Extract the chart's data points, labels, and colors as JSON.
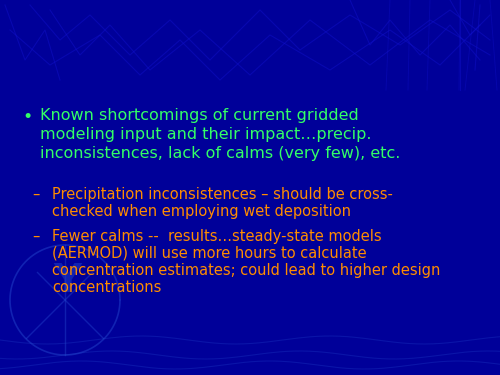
{
  "background_color": "#000099",
  "bullet_text_color": "#33ff66",
  "sub_bullet_color": "#ff8c00",
  "bullet_text_line1": "Known shortcomings of current gridded",
  "bullet_text_line2": "modeling input and their impact…precip.",
  "bullet_text_line3": "inconsistences, lack of calms (very few), etc.",
  "sub_bullet1_line1": "Precipitation inconsistences – should be cross-",
  "sub_bullet1_line2": "checked when employing wet deposition",
  "sub_bullet2_line1": "Fewer calms --  results…steady-state models",
  "sub_bullet2_line2": "(AERMOD) will use more hours to calculate",
  "sub_bullet2_line3": "concentration estimates; could lead to higher design",
  "sub_bullet2_line4": "concentrations",
  "figsize": [
    5.0,
    3.75
  ],
  "dpi": 100
}
